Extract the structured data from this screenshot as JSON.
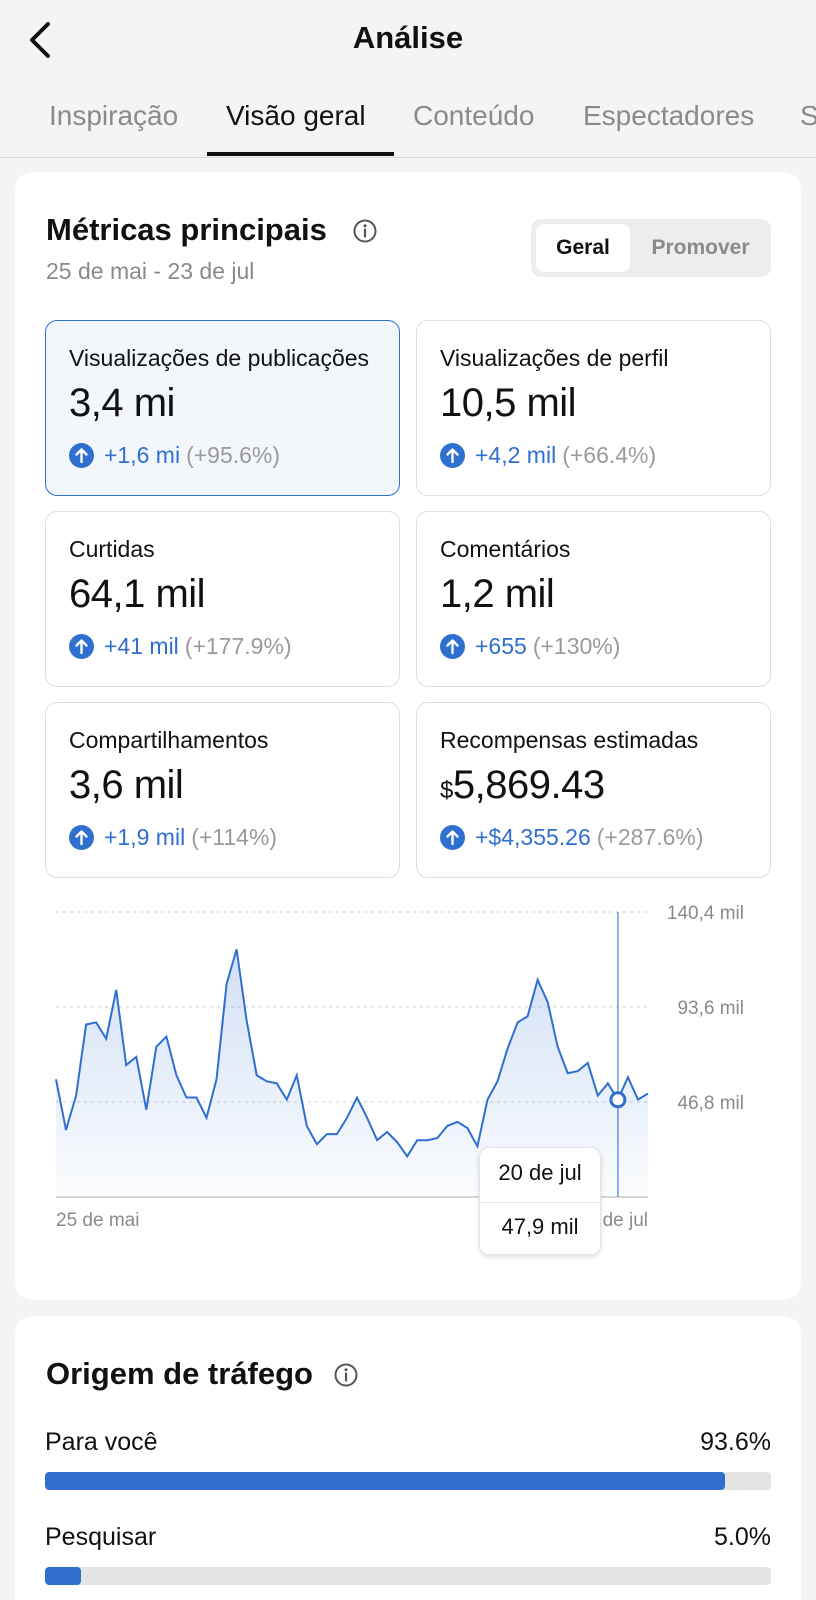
{
  "header": {
    "title": "Análise"
  },
  "tabs": [
    {
      "label": "Inspiração"
    },
    {
      "label": "Visão geral",
      "active": true
    },
    {
      "label": "Conteúdo"
    },
    {
      "label": "Espectadores"
    },
    {
      "label": "S"
    }
  ],
  "metrics": {
    "title": "Métricas principais",
    "date_range": "25 de mai - 23 de jul",
    "toggle": {
      "on": "Geral",
      "off": "Promover"
    },
    "cards": [
      {
        "label": "Visualizações de publicações",
        "value": "3,4 mi",
        "delta": "+1,6 mi",
        "pct": "(+95.6%)",
        "selected": true
      },
      {
        "label": "Visualizações de perfil",
        "value": "10,5 mil",
        "delta": "+4,2 mil",
        "pct": "(+66.4%)"
      },
      {
        "label": "Curtidas",
        "value": "64,1 mil",
        "delta": "+41 mil",
        "pct": "(+177.9%)"
      },
      {
        "label": "Comentários",
        "value": "1,2 mil",
        "delta": "+655",
        "pct": "(+130%)"
      },
      {
        "label": "Compartilhamentos",
        "value": "3,6 mil",
        "delta": "+1,9 mil",
        "pct": "(+114%)"
      },
      {
        "label": "Recompensas estimadas",
        "currency": "$",
        "value": "5,869.43",
        "delta": "+$4,355.26",
        "pct": "(+287.6%)"
      }
    ]
  },
  "chart_data": {
    "type": "area",
    "x_start_label": "25 de mai",
    "x_end_label": "de jul",
    "y_tick_labels": [
      "140,4 mil",
      "93,6 mil",
      "46,8 mil"
    ],
    "y_ticks": [
      140.4,
      93.6,
      46.8
    ],
    "ylim": [
      0,
      140.4
    ],
    "values": [
      58,
      33,
      50,
      85,
      86,
      78,
      102,
      65,
      69,
      43,
      74,
      79,
      60,
      49,
      49,
      39,
      58,
      105,
      122,
      87,
      60,
      57,
      56,
      48,
      60,
      35,
      26,
      31,
      31,
      39,
      49,
      39,
      28,
      32,
      27,
      20,
      28,
      28,
      29,
      35,
      37,
      34,
      25,
      48,
      57,
      73,
      86,
      89,
      107,
      96,
      74,
      61,
      62,
      66,
      50,
      56,
      47.9,
      59,
      48,
      51
    ],
    "tooltip": {
      "date": "20 de jul",
      "value": "47,9 mil",
      "index": 56
    },
    "color": "#2f6fd0"
  },
  "traffic": {
    "title": "Origem de tráfego",
    "rows": [
      {
        "label": "Para você",
        "pct_label": "93.6%",
        "fraction": 0.936
      },
      {
        "label": "Pesquisar",
        "pct_label": "5.0%",
        "fraction": 0.05
      }
    ]
  }
}
